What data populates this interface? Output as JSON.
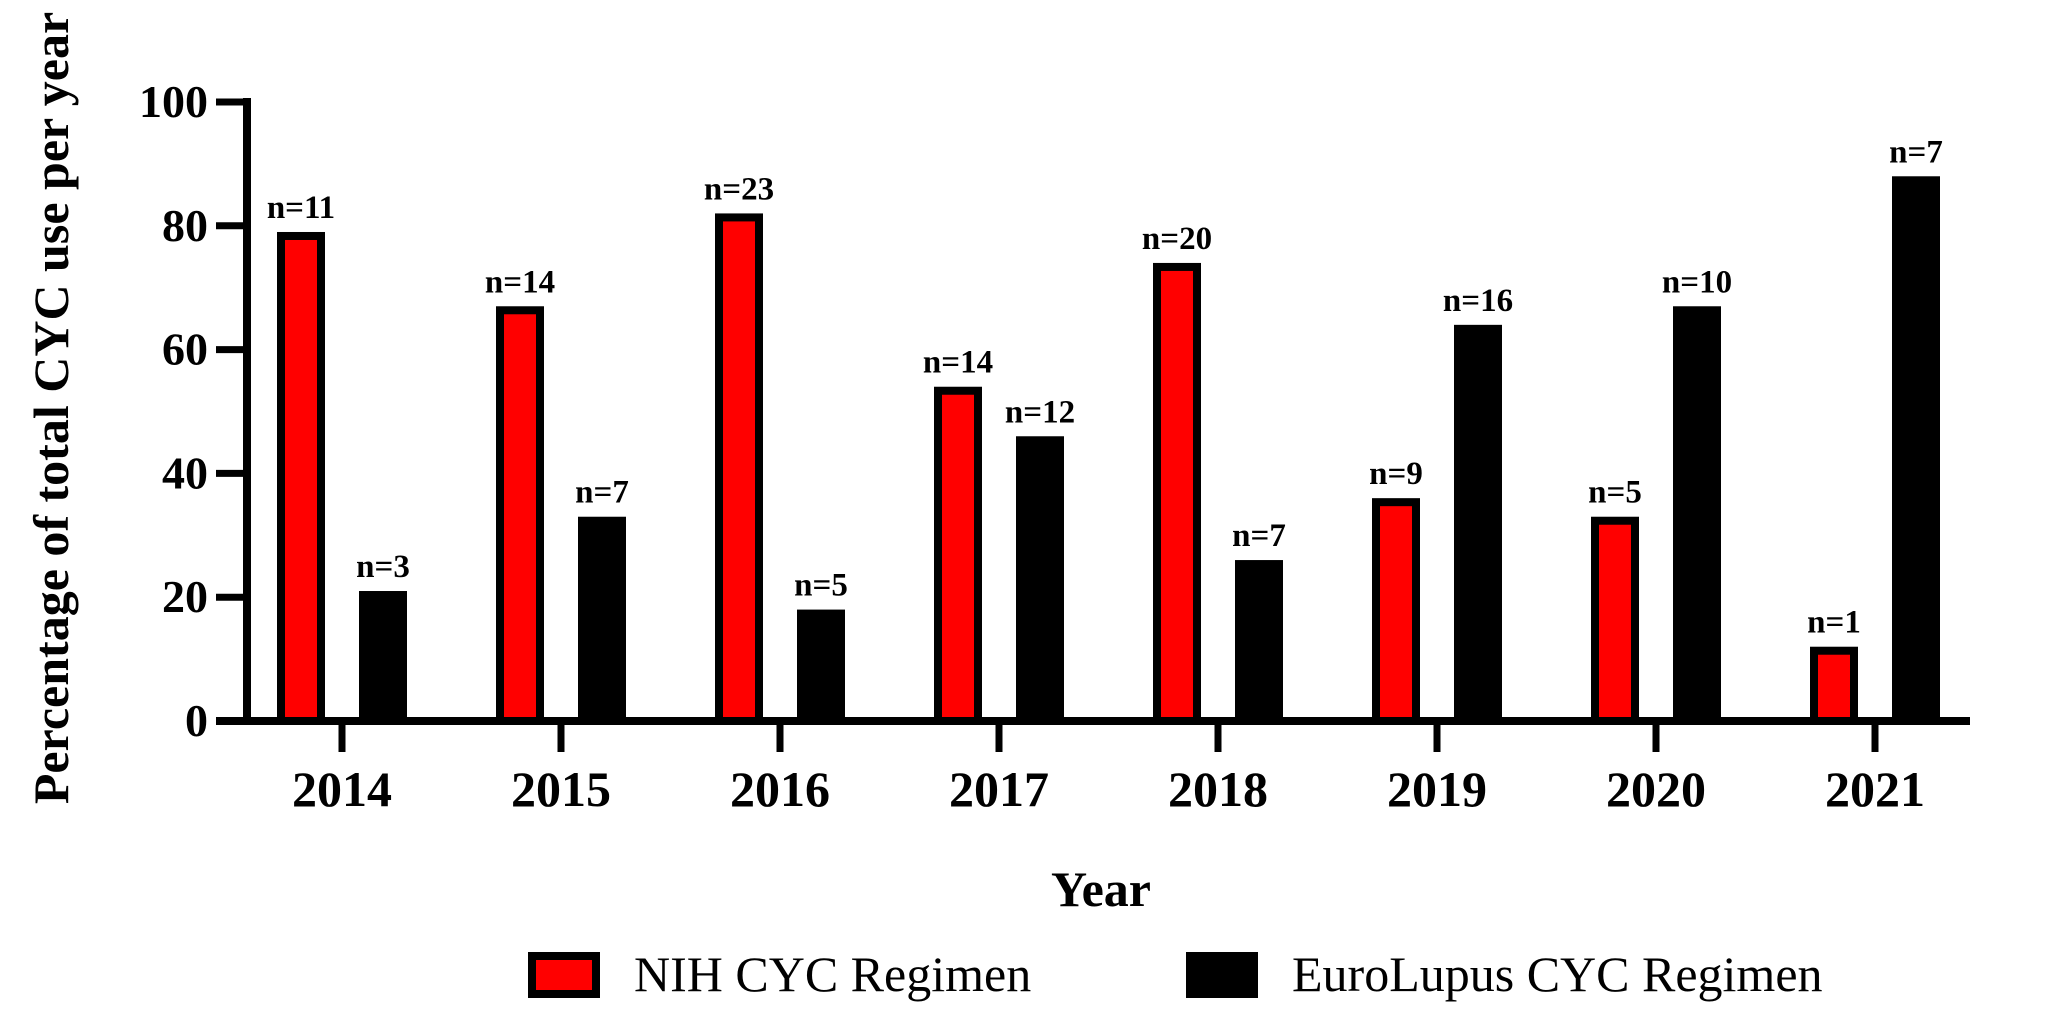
{
  "chart_data": {
    "type": "bar",
    "title": "",
    "xlabel": "Year",
    "ylabel": "Percentage of total CYC use per year",
    "ylim": [
      0,
      100
    ],
    "yticks": [
      0,
      20,
      40,
      60,
      80,
      100
    ],
    "categories": [
      "2014",
      "2015",
      "2016",
      "2017",
      "2018",
      "2019",
      "2020",
      "2021"
    ],
    "series": [
      {
        "name": "NIH CYC Regimen",
        "color": "#ff0000",
        "outline": "#000000",
        "values": [
          79,
          67,
          82,
          54,
          74,
          36,
          33,
          12
        ],
        "labels": [
          "n=11",
          "n=14",
          "n=23",
          "n=14",
          "n=20",
          "n=9",
          "n=5",
          "n=1"
        ]
      },
      {
        "name": "EuroLupus CYC Regimen",
        "color": "#000000",
        "outline": "#000000",
        "values": [
          21,
          33,
          18,
          46,
          26,
          64,
          67,
          88
        ],
        "labels": [
          "n=3",
          "n=7",
          "n=5",
          "n=12",
          "n=7",
          "n=16",
          "n=10",
          "n=7"
        ]
      }
    ],
    "grid": false,
    "legend_position": "bottom"
  }
}
